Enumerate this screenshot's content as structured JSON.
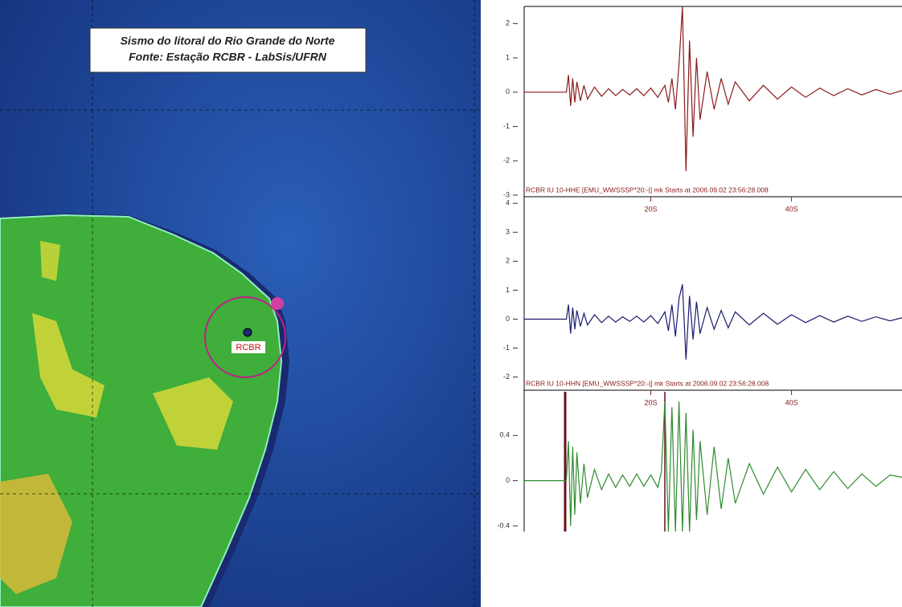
{
  "map": {
    "title": "Sismo do litoral do Rio Grande do Norte",
    "subtitle": "Fonte: Estação RCBR - LabSis/UFRN",
    "station": "RCBR"
  },
  "chart_data": [
    {
      "type": "line",
      "title": "RCBR IU 10-HHE  [EMU_WWSSSP*20:-|] mk Starts at 2006.09.02 23:56:28.008",
      "x": [
        2,
        8,
        8.3,
        8.6,
        8.9,
        9.2,
        9.5,
        10,
        10.5,
        11,
        12,
        13,
        14,
        15,
        16,
        17,
        18,
        19,
        20,
        21,
        22,
        22.5,
        23,
        23.5,
        24,
        24.5,
        25,
        25.5,
        26,
        26.5,
        27,
        28,
        29,
        30,
        31,
        32,
        34,
        36,
        38,
        40,
        42,
        44,
        46,
        48,
        50,
        52,
        54,
        55.7
      ],
      "series": [
        {
          "color": "#8b1a1a",
          "values": [
            0,
            0,
            0.5,
            -0.4,
            0.4,
            -0.3,
            0.3,
            -0.25,
            0.2,
            -0.2,
            0.15,
            -0.12,
            0.1,
            -0.1,
            0.08,
            -0.08,
            0.1,
            -0.1,
            0.12,
            -0.15,
            0.2,
            -0.3,
            0.4,
            -0.5,
            0.8,
            2.5,
            -2.3,
            1.5,
            -1.3,
            1.0,
            -0.8,
            0.6,
            -0.5,
            0.4,
            -0.35,
            0.3,
            -0.25,
            0.2,
            -0.2,
            0.15,
            -0.15,
            0.12,
            -0.1,
            0.1,
            -0.08,
            0.08,
            -0.06,
            0.05
          ]
        }
      ],
      "xlim": [
        2,
        55.7
      ],
      "xticks": [
        {
          "value": 20,
          "label": "20S"
        },
        {
          "value": 40,
          "label": "40S"
        }
      ],
      "ylim": [
        -3,
        2.5
      ],
      "yticks": [
        2,
        1,
        0,
        -1,
        -2,
        -3
      ]
    },
    {
      "type": "line",
      "title": "RCBR IU 10-HHN  [EMU_WWSSSP*20:-|] mk Starts at 2006.09.02 23:56:28.008",
      "x": [
        2,
        8,
        8.3,
        8.6,
        8.9,
        9.2,
        9.5,
        10,
        10.5,
        11,
        12,
        13,
        14,
        15,
        16,
        17,
        18,
        19,
        20,
        21,
        22,
        22.5,
        23,
        23.5,
        24,
        24.5,
        25,
        25.5,
        26,
        26.5,
        27,
        28,
        29,
        30,
        31,
        32,
        34,
        36,
        38,
        40,
        42,
        44,
        46,
        48,
        50,
        52,
        54,
        55.7
      ],
      "series": [
        {
          "color": "#1a1a6e",
          "values": [
            0,
            0,
            0.5,
            -0.5,
            0.4,
            -0.35,
            0.3,
            -0.25,
            0.2,
            -0.2,
            0.15,
            -0.12,
            0.1,
            -0.1,
            0.08,
            -0.08,
            0.1,
            -0.1,
            0.12,
            -0.15,
            0.25,
            -0.4,
            0.5,
            -0.6,
            0.7,
            1.2,
            -1.4,
            0.8,
            -0.7,
            0.6,
            -0.5,
            0.4,
            -0.35,
            0.3,
            -0.3,
            0.25,
            -0.2,
            0.2,
            -0.18,
            0.15,
            -0.12,
            0.12,
            -0.1,
            0.1,
            -0.08,
            0.08,
            -0.06,
            0.05
          ]
        }
      ],
      "xlim": [
        2,
        55.7
      ],
      "xticks": [
        {
          "value": 20,
          "label": "20S"
        },
        {
          "value": 40,
          "label": "40S"
        }
      ],
      "ylim": [
        -2.4,
        4.2
      ],
      "yticks": [
        4,
        3,
        2,
        1,
        0,
        -1,
        -2
      ]
    },
    {
      "type": "line",
      "x": [
        2,
        8,
        8.3,
        8.6,
        8.9,
        9.2,
        9.5,
        10,
        10.5,
        11,
        12,
        13,
        14,
        15,
        16,
        17,
        18,
        19,
        20,
        21,
        21.5,
        22,
        22.5,
        23,
        23.5,
        24,
        24.5,
        25,
        25.5,
        26,
        26.5,
        27,
        28,
        29,
        30,
        31,
        32,
        34,
        36,
        38,
        40,
        42,
        44,
        46,
        48,
        50,
        52,
        54,
        55.7
      ],
      "series": [
        {
          "color": "#2e8b2e",
          "values": [
            0,
            0,
            0.35,
            -0.4,
            0.3,
            -0.3,
            0.25,
            -0.2,
            0.15,
            -0.15,
            0.1,
            -0.08,
            0.06,
            -0.06,
            0.05,
            -0.05,
            0.06,
            -0.05,
            0.05,
            -0.06,
            0.08,
            0.7,
            -0.45,
            0.65,
            -0.45,
            0.7,
            -0.45,
            0.6,
            -0.45,
            0.45,
            -0.35,
            0.35,
            -0.3,
            0.3,
            -0.25,
            0.2,
            -0.2,
            0.15,
            -0.12,
            0.12,
            -0.1,
            0.1,
            -0.08,
            0.08,
            -0.07,
            0.06,
            -0.05,
            0.05,
            0.03
          ]
        }
      ],
      "xlim": [
        2,
        55.7
      ],
      "ylim": [
        -0.45,
        0.8
      ],
      "yticks": [
        0.4,
        0,
        -0.4
      ]
    }
  ]
}
